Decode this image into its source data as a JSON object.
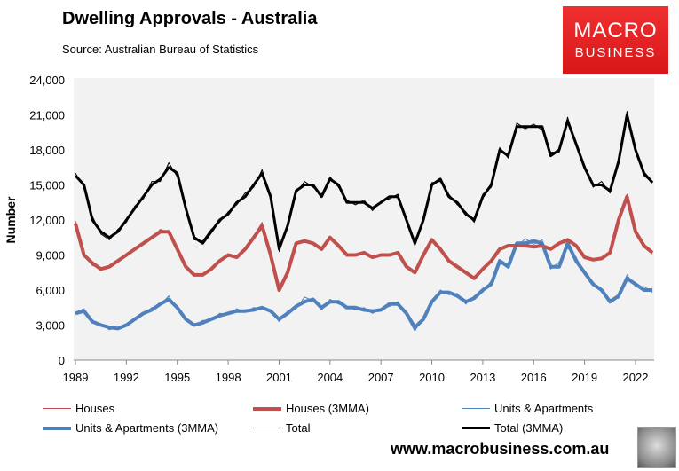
{
  "header": {
    "title": "Dwelling Approvals - Australia",
    "source": "Source:   Australian Bureau of Statistics"
  },
  "logo": {
    "line1": "MACRO",
    "line2": "BUSINESS",
    "color": "#e32222"
  },
  "footer": {
    "website": "www.macrobusiness.com.au"
  },
  "chart_data": {
    "type": "line",
    "ylabel": "Number",
    "ylim": [
      0,
      24000
    ],
    "yticks": [
      "0",
      "3,000",
      "6,000",
      "9,000",
      "12,000",
      "15,000",
      "18,000",
      "21,000",
      "24,000"
    ],
    "xlim": [
      1989,
      2023
    ],
    "xticks": [
      "1989",
      "1992",
      "1995",
      "1998",
      "2001",
      "2004",
      "2007",
      "2010",
      "2013",
      "2016",
      "2019",
      "2022"
    ],
    "grid": false,
    "legend_position": "bottom",
    "x_start": 1989,
    "x_step": 0.5,
    "series": [
      {
        "name": "Houses",
        "color": "#c0504d",
        "width": 1,
        "values": [
          11900,
          9100,
          8100,
          7900,
          8100,
          8400,
          9100,
          9400,
          10100,
          10400,
          11200,
          10900,
          9600,
          7900,
          7200,
          7400,
          7700,
          8600,
          8900,
          8900,
          9400,
          10600,
          11800,
          8800,
          5900,
          7600,
          9900,
          10300,
          9900,
          9600,
          10600,
          9700,
          9100,
          8900,
          9300,
          8700,
          9100,
          8900,
          9300,
          7900,
          7400,
          9100,
          10400,
          9400,
          8600,
          7900,
          7600,
          6900,
          7900,
          8400,
          9600,
          9700,
          9900,
          9700,
          9800,
          9700,
          9600,
          9900,
          10400,
          9700,
          8900,
          8500,
          8800,
          9100,
          12200,
          14200,
          10800,
          9900,
          9100
        ]
      },
      {
        "name": "Houses (3MMA)",
        "color": "#c0504d",
        "width": 4,
        "values": [
          11700,
          9000,
          8300,
          7800,
          8000,
          8500,
          9000,
          9500,
          10000,
          10500,
          11000,
          11000,
          9500,
          8000,
          7300,
          7300,
          7800,
          8500,
          9000,
          8800,
          9500,
          10500,
          11500,
          9000,
          6000,
          7500,
          10000,
          10200,
          10000,
          9500,
          10500,
          9800,
          9000,
          9000,
          9200,
          8800,
          9000,
          9000,
          9200,
          8000,
          7500,
          9000,
          10300,
          9500,
          8500,
          8000,
          7500,
          7000,
          7800,
          8500,
          9500,
          9800,
          9800,
          9800,
          9700,
          9800,
          9500,
          10000,
          10300,
          9800,
          8800,
          8600,
          8700,
          9200,
          12000,
          14000,
          11000,
          9800,
          9200
        ]
      },
      {
        "name": "Units & Apartments",
        "color": "#4f81bd",
        "width": 1,
        "values": [
          4100,
          4400,
          3200,
          3100,
          2600,
          2800,
          2900,
          3600,
          3900,
          4500,
          4700,
          5500,
          4300,
          3400,
          2900,
          3400,
          3400,
          4000,
          3900,
          4400,
          4100,
          4500,
          4400,
          4300,
          3300,
          4200,
          4400,
          5400,
          5100,
          4300,
          5200,
          4800,
          4600,
          4300,
          4500,
          4000,
          4400,
          4600,
          5000,
          3800,
          2500,
          3700,
          4800,
          6000,
          5600,
          5700,
          4800,
          5500,
          5800,
          6800,
          8200,
          8300,
          9700,
          10400,
          9900,
          10300,
          7800,
          8400,
          9600,
          8800,
          7300,
          6700,
          5800,
          5200,
          5300,
          7300,
          6300,
          6300,
          5800
        ]
      },
      {
        "name": "Units & Apartments (3MMA)",
        "color": "#4f81bd",
        "width": 4,
        "values": [
          4000,
          4200,
          3300,
          3000,
          2800,
          2700,
          3000,
          3500,
          4000,
          4300,
          4800,
          5200,
          4500,
          3500,
          3000,
          3200,
          3500,
          3800,
          4000,
          4200,
          4200,
          4300,
          4500,
          4200,
          3500,
          4000,
          4600,
          5000,
          5200,
          4500,
          5000,
          5000,
          4500,
          4500,
          4300,
          4200,
          4300,
          4800,
          4800,
          4000,
          2800,
          3500,
          5000,
          5800,
          5800,
          5500,
          5000,
          5300,
          6000,
          6500,
          8500,
          8000,
          10000,
          10000,
          10200,
          10000,
          8000,
          8000,
          10000,
          8500,
          7500,
          6500,
          6000,
          5000,
          5500,
          7000,
          6500,
          6000,
          6000
        ]
      },
      {
        "name": "Total",
        "color": "#000000",
        "width": 1,
        "values": [
          16000,
          14800,
          12300,
          10800,
          10300,
          11200,
          11800,
          13200,
          13800,
          15300,
          15300,
          16900,
          15700,
          13200,
          10300,
          10200,
          11200,
          11800,
          12700,
          13300,
          14300,
          14800,
          16300,
          13800,
          9300,
          11700,
          14300,
          15300,
          14800,
          14200,
          15700,
          14800,
          13700,
          13300,
          13700,
          12800,
          13600,
          13800,
          14200,
          11800,
          9800,
          12300,
          15200,
          15300,
          14200,
          13300,
          12700,
          11800,
          14200,
          14800,
          18200,
          17300,
          20300,
          19800,
          20200,
          19700,
          17800,
          17800,
          20800,
          18300,
          16700,
          14800,
          15300,
          14300,
          17200,
          21300,
          17800,
          15800,
          15200
        ]
      },
      {
        "name": "Total (3MMA)",
        "color": "#000000",
        "width": 3,
        "values": [
          15800,
          15000,
          12000,
          11000,
          10500,
          11000,
          12000,
          13000,
          14000,
          15000,
          15500,
          16500,
          16000,
          13000,
          10500,
          10000,
          11000,
          12000,
          12500,
          13500,
          14000,
          15000,
          16000,
          14000,
          9500,
          11500,
          14500,
          15000,
          15000,
          14000,
          15500,
          15000,
          13500,
          13500,
          13500,
          13000,
          13500,
          14000,
          14000,
          12000,
          10000,
          12000,
          15000,
          15500,
          14000,
          13500,
          12500,
          12000,
          14000,
          15000,
          18000,
          17500,
          20000,
          20000,
          20000,
          20000,
          17500,
          18000,
          20500,
          18500,
          16500,
          15000,
          15000,
          14500,
          17000,
          21000,
          18000,
          16000,
          15200
        ]
      }
    ]
  }
}
